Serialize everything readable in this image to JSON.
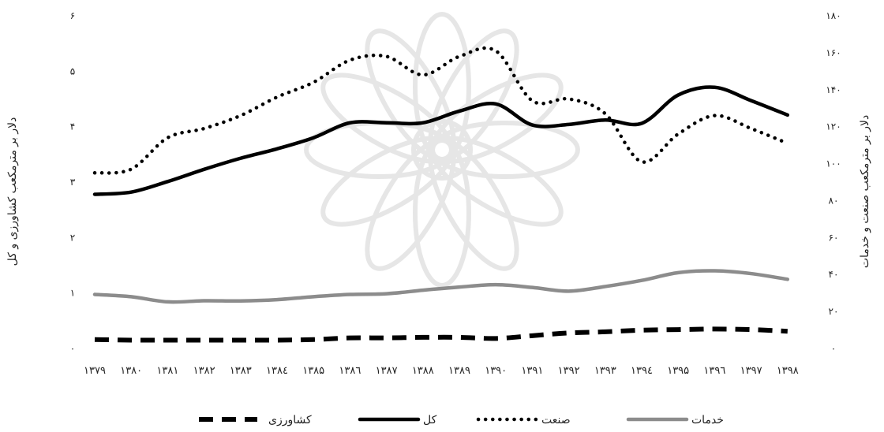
{
  "chart_data": {
    "type": "line",
    "title": "",
    "x": [
      "۱۳۷۹",
      "۱۳۸۰",
      "۱۳۸۱",
      "۱۳۸۲",
      "۱۳۸۳",
      "۱۳۸٤",
      "۱۳۸۵",
      "۱۳۸٦",
      "۱۳۸۷",
      "۱۳۸۸",
      "۱۳۸۹",
      "۱۳۹۰",
      "۱۳۹۱",
      "۱۳۹۲",
      "۱۳۹۳",
      "۱۳۹٤",
      "۱۳۹۵",
      "۱۳۹٦",
      "۱۳۹۷",
      "۱۳۹۸"
    ],
    "ylabel_left": "دلار بر مترمکعب کشاورزی و کل",
    "ylabel_right": "دلار بر مترمکعب صنعت و خدمات",
    "yticks_left": [
      "۰",
      "۱",
      "۲",
      "۳",
      "۴",
      "۵",
      "۶"
    ],
    "yticks_right": [
      "۰",
      "۲۰",
      "۴۰",
      "۶۰",
      "۸۰",
      "۱۰۰",
      "۱۲۰",
      "۱۴۰",
      "۱۶۰",
      "۱۸۰"
    ],
    "ylim_left": [
      0,
      6
    ],
    "ylim_right": [
      0,
      180
    ],
    "grid": false,
    "legend_position": "bottom",
    "series": [
      {
        "name": "خدمات",
        "axis": "right",
        "style": "solid",
        "color": "#8c8c8c",
        "values": [
          29.2,
          28,
          25.2,
          25.8,
          25.7,
          26.4,
          28,
          29.2,
          29.6,
          31.5,
          33.2,
          34.5,
          33,
          31,
          33.5,
          36.8,
          41,
          42,
          40.5,
          37.4
        ]
      },
      {
        "name": "صنعت",
        "axis": "right",
        "style": "dotted",
        "color": "#000000",
        "values": [
          95,
          97,
          114,
          119,
          126,
          136,
          144,
          156,
          158,
          148,
          158,
          161,
          134,
          135,
          127,
          101,
          116,
          126,
          119,
          111
        ]
      },
      {
        "name": "کل",
        "axis": "left",
        "style": "solid",
        "color": "#000000",
        "values": [
          2.78,
          2.82,
          3.01,
          3.23,
          3.43,
          3.6,
          3.8,
          4.07,
          4.07,
          4.07,
          4.28,
          4.41,
          4.03,
          4.04,
          4.12,
          4.06,
          4.57,
          4.71,
          4.47,
          4.21
        ]
      },
      {
        "name": "کشاورزی",
        "axis": "left",
        "style": "dashed",
        "color": "#000000",
        "values": [
          0.16,
          0.15,
          0.15,
          0.15,
          0.15,
          0.15,
          0.16,
          0.19,
          0.19,
          0.2,
          0.2,
          0.18,
          0.23,
          0.28,
          0.3,
          0.33,
          0.34,
          0.35,
          0.34,
          0.31
        ]
      }
    ]
  }
}
